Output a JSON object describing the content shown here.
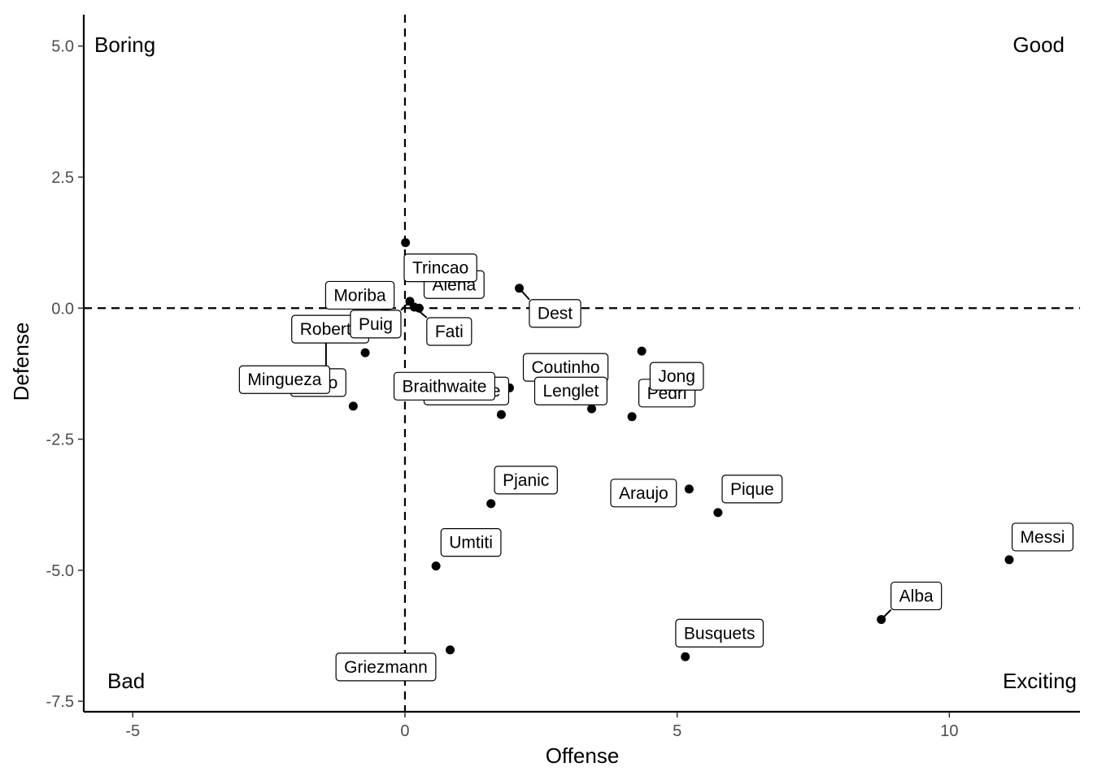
{
  "chart_data": {
    "type": "scatter",
    "xlabel": "Offense",
    "ylabel": "Defense",
    "xlim": [
      -5.9,
      12.4
    ],
    "ylim": [
      5.6,
      -7.7
    ],
    "y_reversed": true,
    "x_ticks": [
      {
        "value": -5,
        "label": "-5"
      },
      {
        "value": 0,
        "label": "0"
      },
      {
        "value": 5,
        "label": "5"
      },
      {
        "value": 10,
        "label": "10"
      }
    ],
    "y_ticks": [
      {
        "value": -7.5,
        "label": "-7.5"
      },
      {
        "value": -5.0,
        "label": "-5.0"
      },
      {
        "value": -2.5,
        "label": "-2.5"
      },
      {
        "value": 0.0,
        "label": "0.0"
      },
      {
        "value": 2.5,
        "label": "2.5"
      },
      {
        "value": 5.0,
        "label": "5.0"
      }
    ],
    "grid": false,
    "reference_lines": {
      "x": 0,
      "y": 0
    },
    "quadrant_labels": {
      "top_left": "Boring",
      "top_right": "Good",
      "bottom_left": "Bad",
      "bottom_right": "Exciting"
    },
    "points": [
      {
        "name": "Busquets",
        "x": 5.15,
        "y": -6.65
      },
      {
        "name": "Griezmann",
        "x": 0.83,
        "y": -6.52
      },
      {
        "name": "Alba",
        "x": 8.75,
        "y": -5.94
      },
      {
        "name": "Umtiti",
        "x": 0.57,
        "y": -4.92
      },
      {
        "name": "Messi",
        "x": 11.1,
        "y": -4.8
      },
      {
        "name": "Pique",
        "x": 5.75,
        "y": -3.9
      },
      {
        "name": "Pjanic",
        "x": 1.58,
        "y": -3.73
      },
      {
        "name": "Araujo",
        "x": 5.22,
        "y": -3.45
      },
      {
        "name": "Pedri",
        "x": 4.17,
        "y": -2.07
      },
      {
        "name": "Dembele",
        "x": 1.77,
        "y": -2.03
      },
      {
        "name": "Coutinho",
        "x": 3.43,
        "y": -1.92
      },
      {
        "name": "Firpo",
        "x": -0.95,
        "y": -1.87
      },
      {
        "name": "Braithwaite",
        "x": 1.92,
        "y": -1.52
      },
      {
        "name": "Lenglet",
        "x": 2.42,
        "y": -1.1
      },
      {
        "name": "Roberto",
        "x": -0.73,
        "y": -0.85
      },
      {
        "name": "Jong",
        "x": 4.35,
        "y": -0.82
      },
      {
        "name": "Mingueza",
        "x": -1.45,
        "y": -0.48
      },
      {
        "name": "Moriba",
        "x": -0.35,
        "y": -0.08
      },
      {
        "name": "Alena",
        "x": 0.26,
        "y": 0.0
      },
      {
        "name": "Fati",
        "x": 0.17,
        "y": 0.02
      },
      {
        "name": "Puig",
        "x": 0.09,
        "y": 0.13
      },
      {
        "name": "Dest",
        "x": 2.1,
        "y": 0.38
      },
      {
        "name": "Trincao",
        "x": 0.01,
        "y": 1.25
      }
    ]
  }
}
